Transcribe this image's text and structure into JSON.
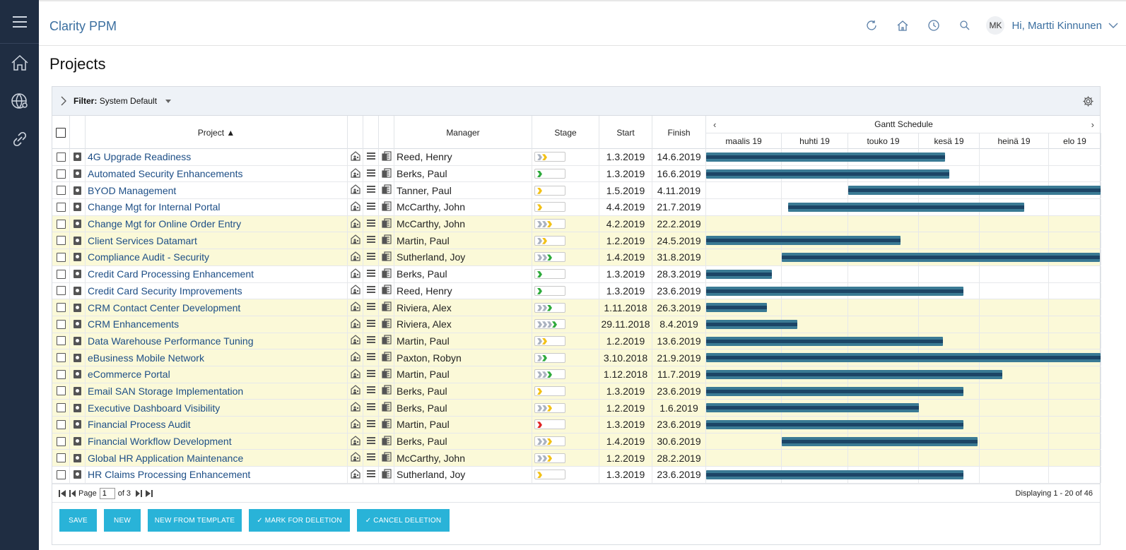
{
  "app": {
    "title": "Clarity PPM",
    "user_initials": "MK",
    "greeting": "Hi, Martti Kinnunen"
  },
  "page": {
    "title": "Projects"
  },
  "filter": {
    "label": "Filter:",
    "value": "System Default"
  },
  "columns": {
    "project": "Project ▲",
    "manager": "Manager",
    "stage": "Stage",
    "start": "Start",
    "finish": "Finish",
    "gantt": "Gantt Schedule"
  },
  "months": [
    "maalis 19",
    "huhti 19",
    "touko 19",
    "kesä 19",
    "heinä 19",
    "elo 19"
  ],
  "rows": [
    {
      "name": "4G Upgrade Readiness",
      "manager": "Reed, Henry",
      "start": "1.3.2019",
      "finish": "14.6.2019",
      "yellow": false,
      "stage": [
        "#aab2bf",
        "#f2c118"
      ]
    },
    {
      "name": "Automated Security Enhancements",
      "manager": "Berks, Paul",
      "start": "1.3.2019",
      "finish": "16.6.2019",
      "yellow": false,
      "stage": [
        "#2eaa3c"
      ]
    },
    {
      "name": "BYOD Management",
      "manager": "Tanner, Paul",
      "start": "1.5.2019",
      "finish": "4.11.2019",
      "yellow": false,
      "stage": [
        "#f2c118"
      ]
    },
    {
      "name": "Change Mgt for Internal Portal",
      "manager": "McCarthy, John",
      "start": "4.4.2019",
      "finish": "21.7.2019",
      "yellow": false,
      "stage": [
        "#f2c118"
      ]
    },
    {
      "name": "Change Mgt for Online Order Entry",
      "manager": "McCarthy, John",
      "start": "4.2.2019",
      "finish": "22.2.2019",
      "yellow": true,
      "stage": [
        "#aab2bf",
        "#aab2bf",
        "#f2c118"
      ]
    },
    {
      "name": "Client Services Datamart",
      "manager": "Martin, Paul",
      "start": "1.2.2019",
      "finish": "24.5.2019",
      "yellow": true,
      "stage": [
        "#aab2bf",
        "#f2c118"
      ]
    },
    {
      "name": "Compliance Audit - Security",
      "manager": "Sutherland, Joy",
      "start": "1.4.2019",
      "finish": "31.8.2019",
      "yellow": true,
      "stage": [
        "#aab2bf",
        "#aab2bf",
        "#2eaa3c"
      ]
    },
    {
      "name": "Credit Card Processing Enhancement",
      "manager": "Berks, Paul",
      "start": "1.3.2019",
      "finish": "28.3.2019",
      "yellow": false,
      "stage": [
        "#2eaa3c"
      ]
    },
    {
      "name": "Credit Card Security Improvements",
      "manager": "Reed, Henry",
      "start": "1.3.2019",
      "finish": "23.6.2019",
      "yellow": false,
      "stage": [
        "#2eaa3c"
      ]
    },
    {
      "name": "CRM Contact Center Development",
      "manager": "Riviera, Alex",
      "start": "1.11.2018",
      "finish": "26.3.2019",
      "yellow": true,
      "stage": [
        "#aab2bf",
        "#aab2bf",
        "#2eaa3c"
      ]
    },
    {
      "name": "CRM Enhancements",
      "manager": "Riviera, Alex",
      "start": "29.11.2018",
      "finish": "8.4.2019",
      "yellow": true,
      "stage": [
        "#aab2bf",
        "#aab2bf",
        "#aab2bf",
        "#2eaa3c"
      ]
    },
    {
      "name": "Data Warehouse Performance Tuning",
      "manager": "Martin, Paul",
      "start": "1.2.2019",
      "finish": "13.6.2019",
      "yellow": true,
      "stage": [
        "#aab2bf",
        "#f2c118"
      ]
    },
    {
      "name": "eBusiness Mobile Network",
      "manager": "Paxton, Robyn",
      "start": "3.10.2018",
      "finish": "21.9.2019",
      "yellow": true,
      "stage": [
        "#aab2bf",
        "#2eaa3c"
      ]
    },
    {
      "name": "eCommerce Portal",
      "manager": "Martin, Paul",
      "start": "1.12.2018",
      "finish": "11.7.2019",
      "yellow": true,
      "stage": [
        "#aab2bf",
        "#aab2bf",
        "#2eaa3c"
      ]
    },
    {
      "name": "Email SAN Storage Implementation",
      "manager": "Berks, Paul",
      "start": "1.3.2019",
      "finish": "23.6.2019",
      "yellow": true,
      "stage": [
        "#f2c118"
      ]
    },
    {
      "name": "Executive Dashboard Visibility",
      "manager": "Berks, Paul",
      "start": "1.2.2019",
      "finish": "1.6.2019",
      "yellow": true,
      "stage": [
        "#aab2bf",
        "#aab2bf",
        "#f2c118"
      ]
    },
    {
      "name": "Financial Process Audit",
      "manager": "Martin, Paul",
      "start": "1.3.2019",
      "finish": "23.6.2019",
      "yellow": true,
      "stage": [
        "#e02424"
      ]
    },
    {
      "name": "Financial Workflow Development",
      "manager": "Berks, Paul",
      "start": "1.4.2019",
      "finish": "30.6.2019",
      "yellow": true,
      "stage": [
        "#aab2bf",
        "#aab2bf",
        "#f2c118"
      ]
    },
    {
      "name": "Global HR Application Maintenance",
      "manager": "McCarthy, John",
      "start": "1.2.2019",
      "finish": "28.2.2019",
      "yellow": true,
      "stage": [
        "#aab2bf",
        "#aab2bf",
        "#f2c118"
      ]
    },
    {
      "name": "HR Claims Processing Enhancement",
      "manager": "Sutherland, Joy",
      "start": "1.3.2019",
      "finish": "23.6.2019",
      "yellow": false,
      "stage": [
        "#f2c118"
      ]
    }
  ],
  "pager": {
    "page_label": "Page",
    "page": "1",
    "of_label": "of 3",
    "displaying": "Displaying 1 - 20 of 46"
  },
  "buttons": {
    "save": "SAVE",
    "new": "NEW",
    "new_from_template": "NEW FROM TEMPLATE",
    "mark_for_deletion": "✓  MARK FOR DELETION",
    "cancel_deletion": "✓  CANCEL DELETION"
  },
  "colors": {
    "sidebar": "#1f2d42",
    "accent": "#29b3d8",
    "gantt_bar": "#3a7a94",
    "gantt_progress": "#1c4566",
    "row_highlight": "#fbf9d8"
  }
}
